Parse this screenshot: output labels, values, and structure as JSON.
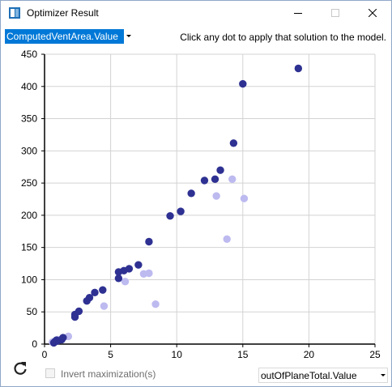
{
  "window": {
    "title": "Optimizer Result"
  },
  "controls": {
    "y_select_value": "ComputedVentArea.Value",
    "hint": "Click any dot to apply that solution to the model.",
    "invert_label": "Invert maximization(s)",
    "x_select_value": "outOfPlaneTotal.Value"
  },
  "colors": {
    "dark_series": "#2e3192",
    "light_series": "#bdbaf0",
    "selection": "#0078d7"
  },
  "icons": {
    "app": "app-icon",
    "minimize": "minimize-icon",
    "maximize": "maximize-icon",
    "close": "close-icon",
    "refresh": "refresh-icon",
    "dropdown": "chevron-down-icon"
  },
  "chart_data": {
    "type": "scatter",
    "xlim": [
      0,
      25
    ],
    "ylim": [
      0,
      450
    ],
    "x_ticks": [
      "0",
      "5",
      "10",
      "15",
      "20",
      "25"
    ],
    "y_ticks": [
      "0",
      "50",
      "100",
      "150",
      "200",
      "250",
      "300",
      "350",
      "400",
      "450"
    ],
    "grid": true,
    "series": [
      {
        "points": [
          [
            0.7,
            2
          ],
          [
            0.8,
            4
          ],
          [
            0.9,
            6
          ],
          [
            1.0,
            5
          ],
          [
            1.4,
            10
          ],
          [
            1.3,
            7
          ],
          [
            2.3,
            42
          ],
          [
            2.3,
            46
          ],
          [
            2.6,
            51
          ],
          [
            3.2,
            67
          ],
          [
            3.4,
            72
          ],
          [
            3.8,
            80
          ],
          [
            4.4,
            84
          ],
          [
            5.6,
            102
          ],
          [
            5.6,
            112
          ],
          [
            6.0,
            114
          ],
          [
            6.4,
            117
          ],
          [
            7.1,
            123
          ],
          [
            7.9,
            159
          ],
          [
            9.5,
            199
          ],
          [
            10.3,
            206
          ],
          [
            11.1,
            234
          ],
          [
            12.1,
            254
          ],
          [
            12.9,
            256
          ],
          [
            13.3,
            270
          ],
          [
            14.3,
            312
          ],
          [
            15.0,
            404
          ],
          [
            19.2,
            428
          ]
        ]
      },
      {
        "points": [
          [
            0.6,
            3
          ],
          [
            1.0,
            7
          ],
          [
            1.8,
            12
          ],
          [
            4.5,
            59
          ],
          [
            6.1,
            97
          ],
          [
            7.5,
            109
          ],
          [
            7.9,
            110
          ],
          [
            8.4,
            62
          ],
          [
            13.0,
            230
          ],
          [
            13.8,
            163
          ],
          [
            14.2,
            256
          ],
          [
            15.1,
            226
          ]
        ]
      }
    ]
  }
}
